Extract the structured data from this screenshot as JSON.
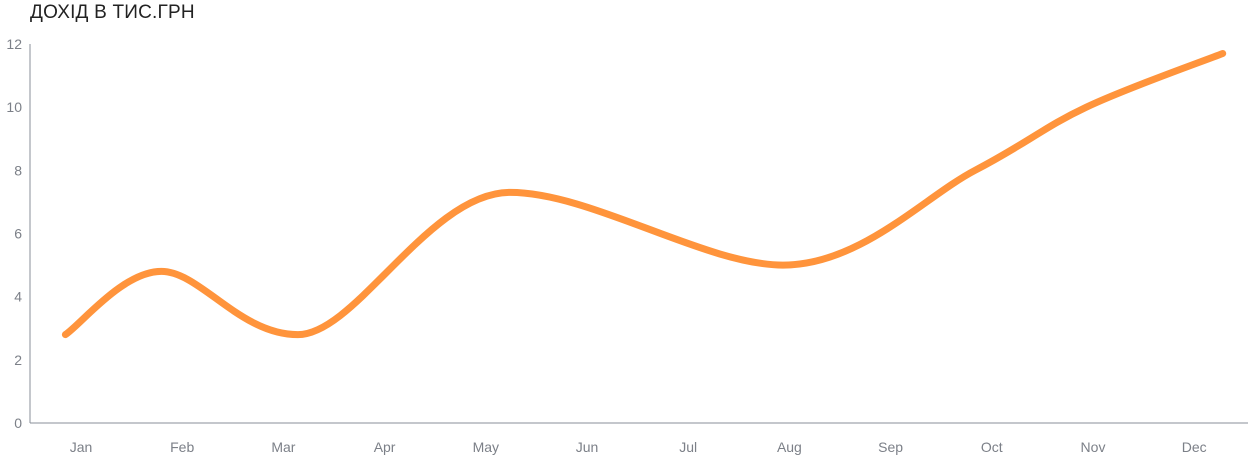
{
  "title": "ДОХІД В ТИС.ГРН",
  "chart_data": {
    "type": "line",
    "title": "ДОХІД В ТИС.ГРН",
    "xlabel": "",
    "ylabel": "",
    "categories": [
      "Jan",
      "Feb",
      "Mar",
      "Apr",
      "May",
      "Jun",
      "Jul",
      "Aug",
      "Sep",
      "Oct",
      "Nov",
      "Dec"
    ],
    "x": [
      0,
      1.3,
      2.2,
      3.0,
      4.0,
      4.7,
      6.0,
      7.0,
      8.0,
      9.0,
      10.0,
      11.5
    ],
    "series": [
      {
        "x": [
          0,
          0.95,
          2.3,
          4.4,
          7.1,
          9.0,
          10.1,
          11.45
        ],
        "values": [
          2.8,
          4.8,
          2.8,
          7.3,
          5.0,
          8.0,
          10.0,
          11.7
        ],
        "color": "#ff943c"
      }
    ],
    "yticks": [
      0,
      2,
      4,
      6,
      8,
      10,
      12
    ],
    "ylim": [
      0,
      12
    ],
    "xlim": [
      -0.35,
      11.7
    ],
    "grid": false,
    "legend": "none",
    "line_color": "#ff943c",
    "axis_color": "#8a8f98",
    "tick_label_color": "#7c8088"
  }
}
